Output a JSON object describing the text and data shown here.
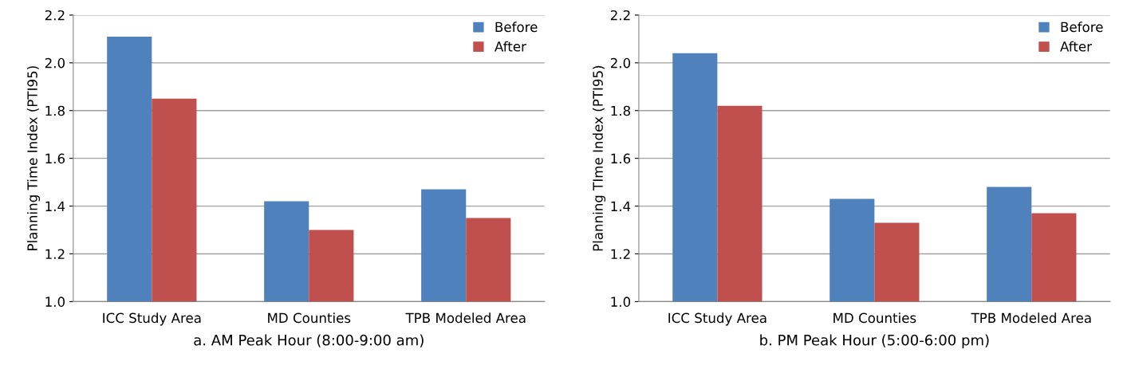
{
  "chart_data": [
    {
      "type": "bar",
      "xlabel": "a. AM Peak Hour (8:00-9:00 am)",
      "ylabel": "Planning Time Index (PTI95)",
      "categories": [
        "ICC Study Area",
        "MD Counties",
        "TPB Modeled Area"
      ],
      "series": [
        {
          "name": "Before",
          "color": "#4f81bd",
          "values": [
            2.11,
            1.42,
            1.47
          ]
        },
        {
          "name": "After",
          "color": "#c0504d",
          "values": [
            1.85,
            1.3,
            1.35
          ]
        }
      ],
      "ylim": [
        1.0,
        2.2
      ],
      "yticks": [
        {
          "value": 1.0,
          "label": "1.0"
        },
        {
          "value": 1.2,
          "label": "1.2"
        },
        {
          "value": 1.4,
          "label": "1.4"
        },
        {
          "value": 1.6,
          "label": "1.6"
        },
        {
          "value": 1.8,
          "label": "1.8"
        },
        {
          "value": 2.0,
          "label": "2.0"
        },
        {
          "value": 2.2,
          "label": "2.2"
        }
      ],
      "grid": "y",
      "legend": "top right"
    },
    {
      "type": "bar",
      "xlabel": "b. PM Peak Hour (5:00-6:00 pm)",
      "ylabel": "Planning TIme Index (PTI95)",
      "categories": [
        "ICC Study Area",
        "MD Counties",
        "TPB Modeled Area"
      ],
      "series": [
        {
          "name": "Before",
          "color": "#4f81bd",
          "values": [
            2.04,
            1.43,
            1.48
          ]
        },
        {
          "name": "After",
          "color": "#c0504d",
          "values": [
            1.82,
            1.33,
            1.37
          ]
        }
      ],
      "ylim": [
        1.0,
        2.2
      ],
      "yticks": [
        {
          "value": 1.0,
          "label": "1.0"
        },
        {
          "value": 1.2,
          "label": "1.2"
        },
        {
          "value": 1.4,
          "label": "1.4"
        },
        {
          "value": 1.6,
          "label": "1.6"
        },
        {
          "value": 1.8,
          "label": "1.8"
        },
        {
          "value": 2.0,
          "label": "2.0"
        },
        {
          "value": 2.2,
          "label": "2.2"
        }
      ],
      "grid": "y",
      "legend": "top right"
    }
  ]
}
